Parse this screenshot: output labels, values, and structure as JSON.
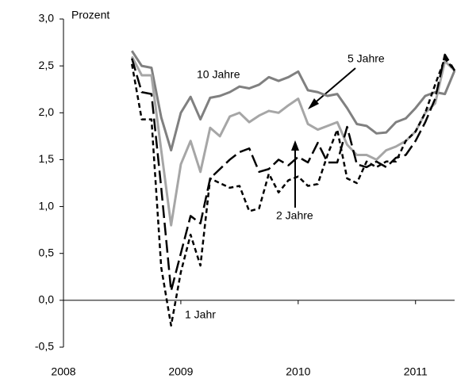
{
  "chart_data": {
    "type": "line",
    "y_label": "Prozent",
    "x": [
      2008.583,
      2008.667,
      2008.75,
      2008.833,
      2008.917,
      2009,
      2009.083,
      2009.167,
      2009.25,
      2009.333,
      2009.417,
      2009.5,
      2009.583,
      2009.667,
      2009.75,
      2009.833,
      2009.917,
      2010,
      2010.083,
      2010.167,
      2010.25,
      2010.333,
      2010.417,
      2010.5,
      2010.583,
      2010.667,
      2010.75,
      2010.833,
      2010.917,
      2011,
      2011.083,
      2011.167,
      2011.25,
      2011.333
    ],
    "series": [
      {
        "name": "10 Jahre",
        "color": "#808080",
        "dash": "solid",
        "values": [
          2.66,
          2.5,
          2.48,
          1.95,
          1.6,
          2.0,
          2.17,
          1.93,
          2.16,
          2.18,
          2.22,
          2.28,
          2.26,
          2.3,
          2.38,
          2.34,
          2.38,
          2.44,
          2.24,
          2.22,
          2.18,
          2.2,
          2.05,
          1.88,
          1.86,
          1.78,
          1.79,
          1.9,
          1.94,
          2.05,
          2.18,
          2.22,
          2.2,
          2.45
        ]
      },
      {
        "name": "5 Jahre",
        "color": "#a6a6a6",
        "dash": "solid",
        "values": [
          2.6,
          2.4,
          2.4,
          1.6,
          0.8,
          1.45,
          1.7,
          1.37,
          1.84,
          1.75,
          1.96,
          2.0,
          1.9,
          1.97,
          2.02,
          2.0,
          2.08,
          2.15,
          1.88,
          1.82,
          1.86,
          1.9,
          1.66,
          1.55,
          1.55,
          1.5,
          1.6,
          1.64,
          1.7,
          1.8,
          2.0,
          2.1,
          2.55,
          2.45
        ]
      },
      {
        "name": "2 Jahre",
        "color": "#000000",
        "dash": "long",
        "values": [
          2.58,
          2.22,
          2.2,
          1.2,
          0.1,
          0.5,
          0.9,
          0.82,
          1.3,
          1.4,
          1.5,
          1.58,
          1.62,
          1.37,
          1.4,
          1.5,
          1.44,
          1.53,
          1.47,
          1.68,
          1.47,
          1.47,
          1.85,
          1.45,
          1.42,
          1.48,
          1.42,
          1.52,
          1.55,
          1.7,
          1.9,
          2.15,
          2.62,
          2.45
        ]
      },
      {
        "name": "1 Jahr",
        "color": "#000000",
        "dash": "short",
        "values": [
          2.52,
          1.93,
          1.93,
          0.35,
          -0.27,
          0.3,
          0.7,
          0.37,
          1.3,
          1.25,
          1.2,
          1.22,
          0.95,
          0.98,
          1.35,
          1.15,
          1.28,
          1.32,
          1.22,
          1.24,
          1.55,
          1.82,
          1.3,
          1.25,
          1.48,
          1.42,
          1.48,
          1.48,
          1.7,
          1.8,
          2.0,
          2.3,
          2.58,
          2.45
        ]
      }
    ],
    "xlim": [
      2008,
      2011.333
    ],
    "xticks": [
      2008,
      2009,
      2010,
      2011
    ],
    "ylim": [
      -0.5,
      3.0
    ],
    "yticks": [
      {
        "value": -0.5,
        "label": "-0,5"
      },
      {
        "value": 0,
        "label": "0,0"
      },
      {
        "value": 0.5,
        "label": "0,5"
      },
      {
        "value": 1.0,
        "label": "1,0"
      },
      {
        "value": 1.5,
        "label": "1,5"
      },
      {
        "value": 2.0,
        "label": "2,0"
      },
      {
        "value": 2.5,
        "label": "2,5"
      },
      {
        "value": 3.0,
        "label": "3,0"
      }
    ]
  }
}
